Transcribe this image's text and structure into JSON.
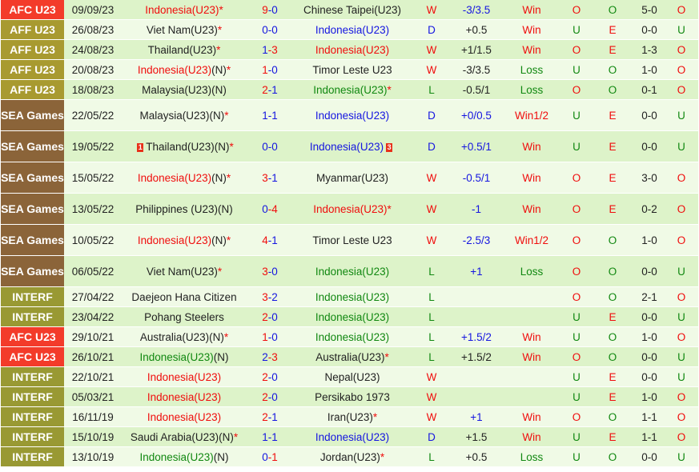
{
  "league_colors": {
    "AFC U23": "#f33b2a",
    "AFF U23": "#a89a30",
    "SEA Games": "#8b6439",
    "INTERF": "#999933"
  },
  "matches": [
    {
      "league": "AFC U23",
      "date": "09/09/23",
      "home": "Indonesia(U23)",
      "home_color": "red",
      "home_suffix": "",
      "home_star": true,
      "hg": "9",
      "ag": "0",
      "away": "Chinese Taipei(U23)",
      "away_color": "black",
      "away_suffix": "",
      "away_star": false,
      "result": "W",
      "hcp": "-3/3.5",
      "hcp_color": "blue",
      "hcp_result": "Win",
      "ou": "O",
      "oe": "O",
      "ht": "5-0",
      "ht_ou": "O"
    },
    {
      "league": "AFF U23",
      "date": "26/08/23",
      "home": "Viet Nam(U23)",
      "home_color": "black",
      "home_suffix": "",
      "home_star": true,
      "hg": "0",
      "ag": "0",
      "away": "Indonesia(U23)",
      "away_color": "blue",
      "away_suffix": "",
      "away_star": false,
      "result": "D",
      "hcp": "+0.5",
      "hcp_color": "black",
      "hcp_result": "Win",
      "ou": "U",
      "oe": "E",
      "ht": "0-0",
      "ht_ou": "U"
    },
    {
      "league": "AFF U23",
      "date": "24/08/23",
      "home": "Thailand(U23)",
      "home_color": "black",
      "home_suffix": "",
      "home_star": true,
      "hg": "1",
      "ag": "3",
      "away": "Indonesia(U23)",
      "away_color": "red",
      "away_suffix": "",
      "away_star": false,
      "result": "W",
      "hcp": "+1/1.5",
      "hcp_color": "black",
      "hcp_result": "Win",
      "ou": "O",
      "oe": "E",
      "ht": "1-3",
      "ht_ou": "O"
    },
    {
      "league": "AFF U23",
      "date": "20/08/23",
      "home": "Indonesia(U23)",
      "home_color": "red",
      "home_suffix": "(N)",
      "home_star": true,
      "hg": "1",
      "ag": "0",
      "away": "Timor Leste U23",
      "away_color": "black",
      "away_suffix": "",
      "away_star": false,
      "result": "W",
      "hcp": "-3/3.5",
      "hcp_color": "black",
      "hcp_result": "Loss",
      "ou": "U",
      "oe": "O",
      "ht": "1-0",
      "ht_ou": "O"
    },
    {
      "league": "AFF U23",
      "date": "18/08/23",
      "home": "Malaysia(U23)(N)",
      "home_color": "black",
      "home_suffix": "",
      "home_star": false,
      "hg": "2",
      "ag": "1",
      "away": "Indonesia(U23)",
      "away_color": "green",
      "away_suffix": "",
      "away_star": true,
      "result": "L",
      "hcp": "-0.5/1",
      "hcp_color": "black",
      "hcp_result": "Loss",
      "ou": "O",
      "oe": "O",
      "ht": "0-1",
      "ht_ou": "O"
    },
    {
      "league": "SEA Games",
      "date": "22/05/22",
      "home": "Malaysia(U23)(N)",
      "home_color": "black",
      "home_suffix": "",
      "home_star": true,
      "hg": "1",
      "ag": "1",
      "away": "Indonesia(U23)",
      "away_color": "blue",
      "away_suffix": "",
      "away_star": false,
      "result": "D",
      "hcp": "+0/0.5",
      "hcp_color": "blue",
      "hcp_result": "Win1/2",
      "ou": "U",
      "oe": "E",
      "ht": "0-0",
      "ht_ou": "U"
    },
    {
      "league": "SEA Games",
      "date": "19/05/22",
      "home": "Thailand(U23)(N)",
      "home_color": "black",
      "home_suffix": "",
      "home_star": true,
      "home_card": "1",
      "hg": "0",
      "ag": "0",
      "away": "Indonesia(U23)",
      "away_color": "blue",
      "away_suffix": "",
      "away_star": false,
      "away_card": "3",
      "result": "D",
      "hcp": "+0.5/1",
      "hcp_color": "blue",
      "hcp_result": "Win",
      "ou": "U",
      "oe": "E",
      "ht": "0-0",
      "ht_ou": "U"
    },
    {
      "league": "SEA Games",
      "date": "15/05/22",
      "home": "Indonesia(U23)",
      "home_color": "red",
      "home_suffix": "(N)",
      "home_star": true,
      "hg": "3",
      "ag": "1",
      "away": "Myanmar(U23)",
      "away_color": "black",
      "away_suffix": "",
      "away_star": false,
      "result": "W",
      "hcp": "-0.5/1",
      "hcp_color": "blue",
      "hcp_result": "Win",
      "ou": "O",
      "oe": "E",
      "ht": "3-0",
      "ht_ou": "O"
    },
    {
      "league": "SEA Games",
      "date": "13/05/22",
      "home": "Philippines (U23)(N)",
      "home_color": "black",
      "home_suffix": "",
      "home_star": false,
      "hg": "0",
      "ag": "4",
      "away": "Indonesia(U23)",
      "away_color": "red",
      "away_suffix": "",
      "away_star": true,
      "result": "W",
      "hcp": "-1",
      "hcp_color": "blue",
      "hcp_result": "Win",
      "ou": "O",
      "oe": "E",
      "ht": "0-2",
      "ht_ou": "O"
    },
    {
      "league": "SEA Games",
      "date": "10/05/22",
      "home": "Indonesia(U23)",
      "home_color": "red",
      "home_suffix": "(N)",
      "home_star": true,
      "hg": "4",
      "ag": "1",
      "away": "Timor Leste U23",
      "away_color": "black",
      "away_suffix": "",
      "away_star": false,
      "result": "W",
      "hcp": "-2.5/3",
      "hcp_color": "blue",
      "hcp_result": "Win1/2",
      "ou": "O",
      "oe": "O",
      "ht": "1-0",
      "ht_ou": "O"
    },
    {
      "league": "SEA Games",
      "date": "06/05/22",
      "home": "Viet Nam(U23)",
      "home_color": "black",
      "home_suffix": "",
      "home_star": true,
      "hg": "3",
      "ag": "0",
      "away": "Indonesia(U23)",
      "away_color": "green",
      "away_suffix": "",
      "away_star": false,
      "result": "L",
      "hcp": "+1",
      "hcp_color": "blue",
      "hcp_result": "Loss",
      "ou": "O",
      "oe": "O",
      "ht": "0-0",
      "ht_ou": "U"
    },
    {
      "league": "INTERF",
      "date": "27/04/22",
      "home": "Daejeon Hana Citizen",
      "home_color": "black",
      "home_suffix": "",
      "home_star": false,
      "hg": "3",
      "ag": "2",
      "away": "Indonesia(U23)",
      "away_color": "green",
      "away_suffix": "",
      "away_star": false,
      "result": "L",
      "hcp": "",
      "hcp_color": "black",
      "hcp_result": "",
      "ou": "O",
      "oe": "O",
      "ht": "2-1",
      "ht_ou": "O"
    },
    {
      "league": "INTERF",
      "date": "23/04/22",
      "home": "Pohang Steelers",
      "home_color": "black",
      "home_suffix": "",
      "home_star": false,
      "hg": "2",
      "ag": "0",
      "away": "Indonesia(U23)",
      "away_color": "green",
      "away_suffix": "",
      "away_star": false,
      "result": "L",
      "hcp": "",
      "hcp_color": "black",
      "hcp_result": "",
      "ou": "U",
      "oe": "E",
      "ht": "0-0",
      "ht_ou": "U"
    },
    {
      "league": "AFC U23",
      "date": "29/10/21",
      "home": "Australia(U23)(N)",
      "home_color": "black",
      "home_suffix": "",
      "home_star": true,
      "hg": "1",
      "ag": "0",
      "away": "Indonesia(U23)",
      "away_color": "green",
      "away_suffix": "",
      "away_star": false,
      "result": "L",
      "hcp": "+1.5/2",
      "hcp_color": "blue",
      "hcp_result": "Win",
      "ou": "U",
      "oe": "O",
      "ht": "1-0",
      "ht_ou": "O"
    },
    {
      "league": "AFC U23",
      "date": "26/10/21",
      "home": "Indonesia(U23)",
      "home_color": "green",
      "home_suffix": "(N)",
      "home_star": false,
      "hg": "2",
      "ag": "3",
      "away": "Australia(U23)",
      "away_color": "black",
      "away_suffix": "",
      "away_star": true,
      "result": "L",
      "hcp": "+1.5/2",
      "hcp_color": "black",
      "hcp_result": "Win",
      "ou": "O",
      "oe": "O",
      "ht": "0-0",
      "ht_ou": "U"
    },
    {
      "league": "INTERF",
      "date": "22/10/21",
      "home": "Indonesia(U23)",
      "home_color": "red",
      "home_suffix": "",
      "home_star": false,
      "hg": "2",
      "ag": "0",
      "away": "Nepal(U23)",
      "away_color": "black",
      "away_suffix": "",
      "away_star": false,
      "result": "W",
      "hcp": "",
      "hcp_color": "black",
      "hcp_result": "",
      "ou": "U",
      "oe": "E",
      "ht": "0-0",
      "ht_ou": "U"
    },
    {
      "league": "INTERF",
      "date": "05/03/21",
      "home": "Indonesia(U23)",
      "home_color": "red",
      "home_suffix": "",
      "home_star": false,
      "hg": "2",
      "ag": "0",
      "away": "Persikabo 1973",
      "away_color": "black",
      "away_suffix": "",
      "away_star": false,
      "result": "W",
      "hcp": "",
      "hcp_color": "black",
      "hcp_result": "",
      "ou": "U",
      "oe": "E",
      "ht": "1-0",
      "ht_ou": "O"
    },
    {
      "league": "INTERF",
      "date": "16/11/19",
      "home": "Indonesia(U23)",
      "home_color": "red",
      "home_suffix": "",
      "home_star": false,
      "hg": "2",
      "ag": "1",
      "away": "Iran(U23)",
      "away_color": "black",
      "away_suffix": "",
      "away_star": true,
      "result": "W",
      "hcp": "+1",
      "hcp_color": "blue",
      "hcp_result": "Win",
      "ou": "O",
      "oe": "O",
      "ht": "1-1",
      "ht_ou": "O"
    },
    {
      "league": "INTERF",
      "date": "15/10/19",
      "home": "Saudi Arabia(U23)(N)",
      "home_color": "black",
      "home_suffix": "",
      "home_star": true,
      "hg": "1",
      "ag": "1",
      "away": "Indonesia(U23)",
      "away_color": "blue",
      "away_suffix": "",
      "away_star": false,
      "result": "D",
      "hcp": "+1.5",
      "hcp_color": "black",
      "hcp_result": "Win",
      "ou": "U",
      "oe": "E",
      "ht": "1-1",
      "ht_ou": "O"
    },
    {
      "league": "INTERF",
      "date": "13/10/19",
      "home": "Indonesia(U23)",
      "home_color": "green",
      "home_suffix": "(N)",
      "home_star": false,
      "hg": "0",
      "ag": "1",
      "away": "Jordan(U23)",
      "away_color": "black",
      "away_suffix": "",
      "away_star": true,
      "result": "L",
      "hcp": "+0.5",
      "hcp_color": "black",
      "hcp_result": "Loss",
      "ou": "U",
      "oe": "O",
      "ht": "0-0",
      "ht_ou": "U"
    }
  ]
}
